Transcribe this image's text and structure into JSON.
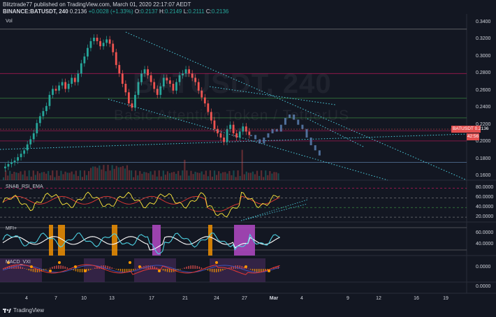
{
  "header": {
    "publisher_line": "Blitztrade77 published on TradingView.com, March 01, 2020 22:17:07 AEDT",
    "symbol_line": "BINANCE:BATUSDT, 240",
    "last": "0.2136",
    "change": "+0.0028 (+1.33%)",
    "o_label": "O:",
    "o_val": "0.2137",
    "h_label": "H:",
    "h_val": "0.2149",
    "l_label": "L:",
    "l_val": "0.2111",
    "c_label": "C:",
    "c_val": "0.2136"
  },
  "watermark": {
    "symbol": "BATUSDT, 240",
    "description": "Basic Attention Token / TetherUS"
  },
  "panes": {
    "main_label": "Vol",
    "rsi_label": "SNAB_RSI_EMA",
    "mfi_label": "MFI+",
    "macd_label": "MACD_VXI"
  },
  "price_axis": [
    "0.3400",
    "0.3200",
    "0.3000",
    "0.2800",
    "0.2600",
    "0.2400",
    "0.2200",
    "0.2000",
    "0.1800",
    "0.1600"
  ],
  "rsi_axis": [
    "80.0000",
    "60.0000",
    "40.0000",
    "20.0000"
  ],
  "mfi_axis": [
    "60.0000",
    "40.0000"
  ],
  "macd_axis": [
    "0.0000",
    "0.0000"
  ],
  "price_tag": {
    "symbol": "BATUSDT",
    "value": "0.2136",
    "countdown": "42:56"
  },
  "x_axis": [
    {
      "label": "4",
      "bold": false
    },
    {
      "label": "7",
      "bold": false
    },
    {
      "label": "10",
      "bold": false
    },
    {
      "label": "13",
      "bold": false
    },
    {
      "label": "17",
      "bold": false
    },
    {
      "label": "21",
      "bold": false
    },
    {
      "label": "24",
      "bold": false
    },
    {
      "label": "27",
      "bold": false
    },
    {
      "label": "Mar",
      "bold": true
    },
    {
      "label": "4",
      "bold": false
    },
    {
      "label": "9",
      "bold": false
    },
    {
      "label": "12",
      "bold": false
    },
    {
      "label": "16",
      "bold": false
    },
    {
      "label": "19",
      "bold": false
    }
  ],
  "footer": {
    "brand": "TradingView"
  },
  "colors": {
    "bg": "#131722",
    "up": "#26a69a",
    "down": "#ef5350",
    "proj": "#5b7fb0",
    "trend": "#4dd0e1",
    "rsi": "#ffeb3b",
    "ema": "#e53935",
    "mfi": "#4dd0e1",
    "highlight": "#ab47bc",
    "orange": "#ff9800"
  },
  "chart_data": {
    "type": "candlestick",
    "title": "BATUSDT, 240",
    "ylim": [
      0.155,
      0.345
    ],
    "candles_close_path": [
      0.171,
      0.174,
      0.176,
      0.178,
      0.182,
      0.186,
      0.19,
      0.197,
      0.203,
      0.21,
      0.222,
      0.23,
      0.236,
      0.242,
      0.255,
      0.262,
      0.26,
      0.266,
      0.27,
      0.262,
      0.268,
      0.275,
      0.27,
      0.28,
      0.292,
      0.3,
      0.31,
      0.318,
      0.322,
      0.318,
      0.312,
      0.316,
      0.32,
      0.315,
      0.305,
      0.29,
      0.28,
      0.268,
      0.258,
      0.245,
      0.24,
      0.255,
      0.27,
      0.28,
      0.285,
      0.278,
      0.27,
      0.262,
      0.255,
      0.265,
      0.275,
      0.272,
      0.268,
      0.26,
      0.27,
      0.278,
      0.28,
      0.285,
      0.28,
      0.275,
      0.27,
      0.26,
      0.252,
      0.245,
      0.235,
      0.225,
      0.215,
      0.21,
      0.205,
      0.2,
      0.215,
      0.22,
      0.21,
      0.205,
      0.212,
      0.218,
      0.212,
      0.208
    ],
    "projection_close_path": [
      0.208,
      0.203,
      0.198,
      0.205,
      0.21,
      0.215,
      0.212,
      0.22,
      0.228,
      0.232,
      0.226,
      0.22,
      0.215,
      0.205,
      0.196,
      0.19,
      0.184
    ],
    "horizontal_levels": [
      0.332,
      0.28,
      0.251,
      0.228,
      0.213,
      0.201,
      0.176
    ]
  }
}
